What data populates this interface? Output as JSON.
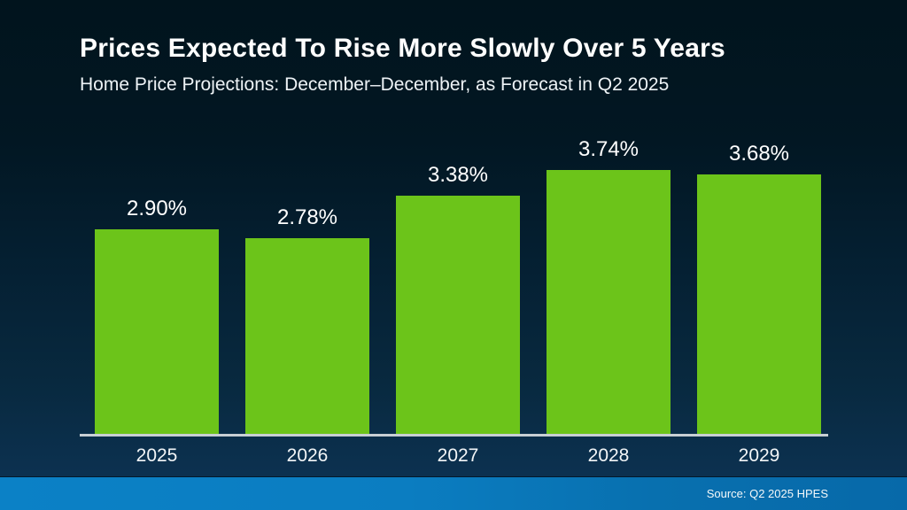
{
  "slide": {
    "title": "Prices Expected To Rise More Slowly Over 5 Years",
    "subtitle": "Home Price Projections: December–December, as Forecast in Q2 2025",
    "source": "Source: Q2 2025 HPES"
  },
  "colors": {
    "bar_green": "#6cc41a",
    "background_top": "#01141d",
    "background_bottom": "#0d3350",
    "axis_line": "#c8cfd4",
    "footer_left": "#0b81c6",
    "footer_right": "#0769a9",
    "text": "#ffffff"
  },
  "chart_data": {
    "type": "bar",
    "title": "Prices Expected To Rise More Slowly Over 5 Years",
    "subtitle": "Home Price Projections: December–December, as Forecast in Q2 2025",
    "categories": [
      "2025",
      "2026",
      "2027",
      "2028",
      "2029"
    ],
    "values": [
      2.9,
      2.78,
      3.38,
      3.74,
      3.68
    ],
    "value_labels": [
      "2.90%",
      "2.78%",
      "3.38%",
      "3.74%",
      "3.68%"
    ],
    "unit": "percent",
    "ylim": [
      0,
      4
    ],
    "grid": false,
    "legend": false,
    "data_labels_position": "above-bars",
    "source": "Source: Q2 2025 HPES"
  }
}
